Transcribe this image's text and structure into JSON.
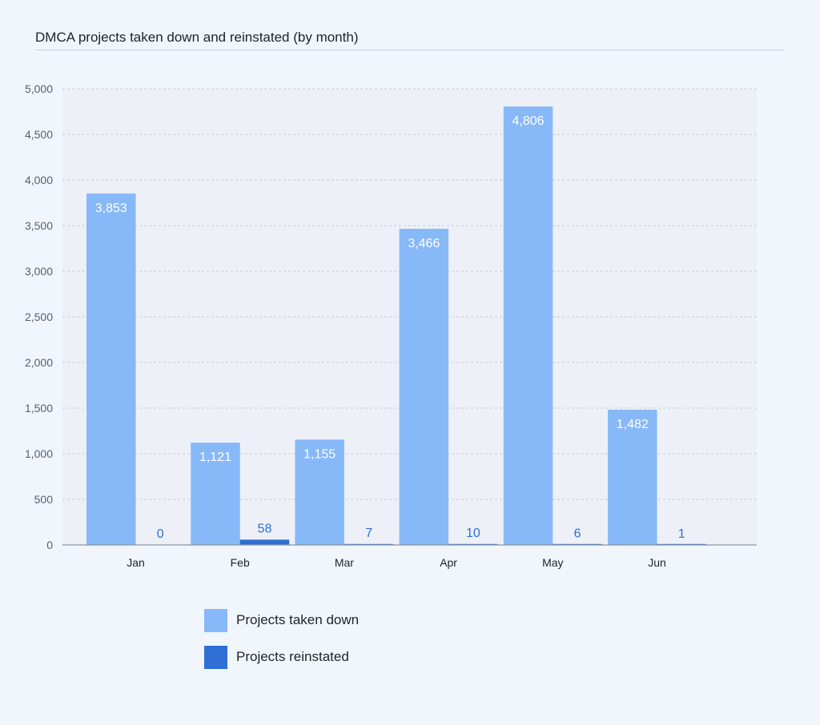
{
  "chart_data": {
    "type": "bar",
    "title": "DMCA projects taken down and reinstated (by month)",
    "xlabel": "",
    "ylabel": "",
    "categories": [
      "Jan",
      "Feb",
      "Mar",
      "Apr",
      "May",
      "Jun"
    ],
    "ylim": [
      0,
      5000
    ],
    "yticks": [
      0,
      500,
      1000,
      1500,
      2000,
      2500,
      3000,
      3500,
      4000,
      4500,
      5000
    ],
    "ytick_labels": [
      "0",
      "500",
      "1,000",
      "1,500",
      "2,000",
      "2,500",
      "3,000",
      "3,500",
      "4,000",
      "4,500",
      "5,000"
    ],
    "grid": true,
    "legend_position": "bottom",
    "series": [
      {
        "name": "Projects taken down",
        "color": "#87b8f8",
        "values": [
          3853,
          1121,
          1155,
          3466,
          4806,
          1482
        ],
        "labels": [
          "3,853",
          "1,121",
          "1,155",
          "3,466",
          "4,806",
          "1,482"
        ]
      },
      {
        "name": "Projects reinstated",
        "color": "#2f6ed4",
        "values": [
          0,
          58,
          7,
          10,
          6,
          1
        ],
        "labels": [
          "0",
          "58",
          "7",
          "10",
          "6",
          "1"
        ]
      }
    ]
  },
  "colors": {
    "page_background": "#f1f6fd",
    "plot_background": "#edf1f7",
    "gridline": "#c3ccd6",
    "axis": "#8c959f",
    "tick_text": "#57606a",
    "inside_label": "#ffffff",
    "outside_label": "#2f6ed4"
  }
}
